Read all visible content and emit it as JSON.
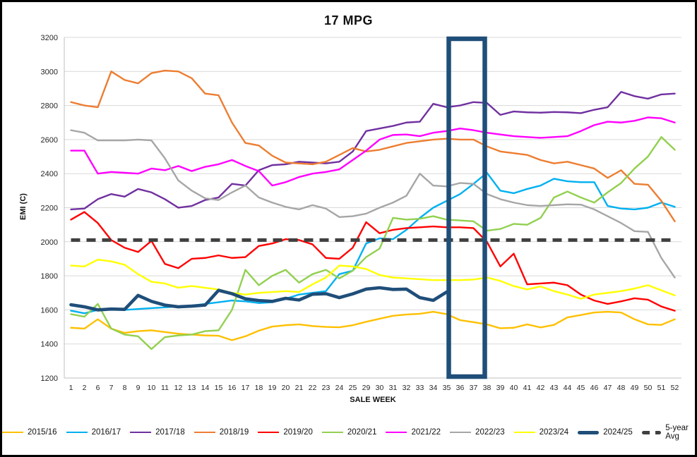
{
  "window": {
    "title": "17 MPG"
  },
  "chart_data": {
    "type": "line",
    "title": "17 MPG",
    "xlabel": "SALE WEEK",
    "ylabel": "EMI (C)",
    "ylim": [
      1200,
      3200
    ],
    "y_tick_step": 200,
    "y_ticks": [
      1200,
      1400,
      1600,
      1800,
      2000,
      2200,
      2400,
      2600,
      2800,
      3000,
      3200
    ],
    "grid": true,
    "legend_position": "bottom",
    "categories": [
      "1",
      "2",
      "6",
      "7",
      "8",
      "9",
      "10",
      "11",
      "12",
      "13",
      "14",
      "15",
      "16",
      "17",
      "18",
      "19",
      "20",
      "21",
      "22",
      "23",
      "24",
      "25",
      "29",
      "30",
      "31",
      "32",
      "33",
      "34",
      "35",
      "36",
      "37",
      "38",
      "39",
      "40",
      "41",
      "42",
      "43",
      "44",
      "45",
      "46",
      "47",
      "48",
      "49",
      "50",
      "51",
      "52"
    ],
    "highlight_box": {
      "from_category": "36",
      "to_category": "37",
      "color": "#1F4E79"
    },
    "series": [
      {
        "name": "2015/16",
        "color": "#FFC000",
        "width": 2.4,
        "values": [
          1495,
          1490,
          1545,
          1490,
          1465,
          1475,
          1480,
          1470,
          1460,
          1455,
          1450,
          1448,
          1422,
          1445,
          1478,
          1502,
          1510,
          1515,
          1505,
          1500,
          1498,
          1510,
          1530,
          1548,
          1565,
          1573,
          1577,
          1589,
          1575,
          1540,
          1528,
          1515,
          1492,
          1495,
          1515,
          1497,
          1512,
          1556,
          1570,
          1585,
          1589,
          1585,
          1545,
          1515,
          1512,
          1545
        ]
      },
      {
        "name": "2016/17",
        "color": "#00B0F0",
        "width": 2.4,
        "values": [
          1595,
          1580,
          1600,
          1605,
          1600,
          1605,
          1610,
          1615,
          1620,
          1625,
          1635,
          1645,
          1655,
          1650,
          1640,
          1645,
          1665,
          1690,
          1700,
          1710,
          1810,
          1830,
          1990,
          2020,
          2015,
          2070,
          2140,
          2200,
          2240,
          2280,
          2340,
          2405,
          2300,
          2285,
          2310,
          2330,
          2370,
          2355,
          2350,
          2350,
          2210,
          2195,
          2190,
          2200,
          2230,
          2205
        ]
      },
      {
        "name": "2017/18",
        "color": "#7030A0",
        "width": 2.4,
        "values": [
          2190,
          2195,
          2250,
          2280,
          2265,
          2310,
          2290,
          2250,
          2200,
          2210,
          2245,
          2260,
          2340,
          2330,
          2420,
          2450,
          2455,
          2470,
          2465,
          2460,
          2470,
          2530,
          2650,
          2665,
          2680,
          2700,
          2705,
          2810,
          2790,
          2800,
          2820,
          2815,
          2745,
          2765,
          2760,
          2758,
          2762,
          2760,
          2755,
          2775,
          2790,
          2880,
          2855,
          2840,
          2865,
          2870
        ]
      },
      {
        "name": "2018/19",
        "color": "#ED7D31",
        "width": 2.4,
        "values": [
          2820,
          2800,
          2790,
          3000,
          2950,
          2930,
          2990,
          3005,
          3000,
          2960,
          2870,
          2860,
          2700,
          2580,
          2565,
          2505,
          2465,
          2460,
          2455,
          2470,
          2510,
          2550,
          2530,
          2540,
          2560,
          2580,
          2590,
          2600,
          2605,
          2600,
          2600,
          2560,
          2530,
          2520,
          2510,
          2480,
          2460,
          2470,
          2450,
          2430,
          2375,
          2420,
          2340,
          2335,
          2240,
          2120
        ]
      },
      {
        "name": "2019/20",
        "color": "#FF0000",
        "width": 2.4,
        "values": [
          2130,
          2175,
          2110,
          2010,
          1965,
          1940,
          2005,
          1870,
          1845,
          1900,
          1905,
          1920,
          1905,
          1910,
          1975,
          1990,
          2015,
          2010,
          1985,
          1905,
          1900,
          1965,
          2115,
          2050,
          2070,
          2080,
          2085,
          2090,
          2085,
          2085,
          2080,
          2000,
          1855,
          1930,
          1750,
          1755,
          1760,
          1745,
          1690,
          1655,
          1635,
          1650,
          1668,
          1660,
          1620,
          1595
        ]
      },
      {
        "name": "2020/21",
        "color": "#92D050",
        "width": 2.4,
        "values": [
          1575,
          1560,
          1635,
          1490,
          1455,
          1445,
          1370,
          1440,
          1450,
          1455,
          1475,
          1480,
          1600,
          1835,
          1745,
          1800,
          1835,
          1760,
          1810,
          1835,
          1785,
          1830,
          1910,
          1960,
          2140,
          2130,
          2135,
          2150,
          2130,
          2125,
          2120,
          2065,
          2075,
          2105,
          2100,
          2140,
          2260,
          2295,
          2260,
          2230,
          2290,
          2345,
          2430,
          2500,
          2615,
          2540
        ]
      },
      {
        "name": "2021/22",
        "color": "#FF00FF",
        "width": 2.4,
        "values": [
          2535,
          2535,
          2400,
          2410,
          2405,
          2400,
          2430,
          2420,
          2445,
          2415,
          2440,
          2455,
          2480,
          2445,
          2415,
          2330,
          2350,
          2380,
          2400,
          2410,
          2425,
          2480,
          2535,
          2600,
          2627,
          2630,
          2620,
          2640,
          2650,
          2665,
          2655,
          2640,
          2630,
          2620,
          2615,
          2610,
          2615,
          2620,
          2650,
          2685,
          2705,
          2700,
          2710,
          2730,
          2725,
          2700
        ]
      },
      {
        "name": "2022/23",
        "color": "#A6A6A6",
        "width": 2.4,
        "values": [
          2655,
          2640,
          2595,
          2595,
          2595,
          2600,
          2595,
          2490,
          2360,
          2300,
          2255,
          2245,
          2290,
          2330,
          2260,
          2230,
          2205,
          2190,
          2215,
          2195,
          2145,
          2150,
          2165,
          2200,
          2230,
          2270,
          2400,
          2330,
          2325,
          2345,
          2340,
          2280,
          2250,
          2230,
          2215,
          2210,
          2215,
          2220,
          2218,
          2190,
          2150,
          2110,
          2062,
          2058,
          1905,
          1790
        ]
      },
      {
        "name": "2023/24",
        "color": "#FFFF00",
        "width": 2.4,
        "values": [
          1860,
          1855,
          1895,
          1885,
          1865,
          1810,
          1765,
          1755,
          1730,
          1740,
          1730,
          1720,
          1700,
          1690,
          1700,
          1705,
          1710,
          1705,
          1750,
          1790,
          1860,
          1855,
          1840,
          1805,
          1790,
          1785,
          1780,
          1775,
          1775,
          1775,
          1778,
          1790,
          1770,
          1740,
          1720,
          1738,
          1710,
          1690,
          1665,
          1690,
          1700,
          1710,
          1725,
          1745,
          1715,
          1685
        ]
      },
      {
        "name": "2024/25",
        "color": "#1F4E79",
        "width": 4.6,
        "values": [
          1630,
          1618,
          1600,
          1605,
          1603,
          1685,
          1650,
          1628,
          1618,
          1622,
          1628,
          1715,
          1695,
          1665,
          1655,
          1650,
          1668,
          1658,
          1692,
          1695,
          1672,
          1694,
          1722,
          1730,
          1720,
          1722,
          1672,
          1656,
          1705
        ]
      },
      {
        "name": "5-year Avg",
        "color": "#404040",
        "width": 5,
        "dash": "13 9",
        "constant_value": 2010
      }
    ]
  }
}
